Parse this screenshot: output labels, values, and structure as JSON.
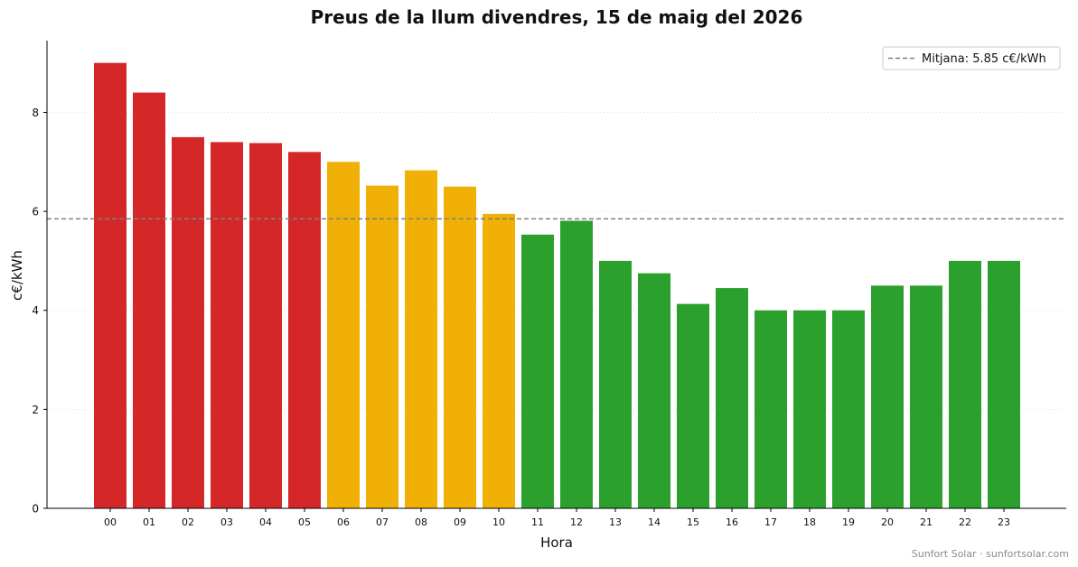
{
  "chart_data": {
    "type": "bar",
    "title": "Preus de la llum divendres, 15 de maig del 2026",
    "xlabel": "Hora",
    "ylabel": "c€/kWh",
    "categories": [
      "00",
      "01",
      "02",
      "03",
      "04",
      "05",
      "06",
      "07",
      "08",
      "09",
      "10",
      "11",
      "12",
      "13",
      "14",
      "15",
      "16",
      "17",
      "18",
      "19",
      "20",
      "21",
      "22",
      "23"
    ],
    "values": [
      9.0,
      8.4,
      7.5,
      7.4,
      7.38,
      7.2,
      7.0,
      6.52,
      6.83,
      6.5,
      5.95,
      5.53,
      5.81,
      5.0,
      4.75,
      4.13,
      4.45,
      4.0,
      4.0,
      4.0,
      4.5,
      4.5,
      5.0,
      5.0
    ],
    "bar_colors": [
      "#d62728",
      "#d62728",
      "#d62728",
      "#d62728",
      "#d62728",
      "#d62728",
      "#f0b005",
      "#f0b005",
      "#f0b005",
      "#f0b005",
      "#f0b005",
      "#2ca02c",
      "#2ca02c",
      "#2ca02c",
      "#2ca02c",
      "#2ca02c",
      "#2ca02c",
      "#2ca02c",
      "#2ca02c",
      "#2ca02c",
      "#2ca02c",
      "#2ca02c",
      "#2ca02c",
      "#2ca02c"
    ],
    "yticks": [
      0,
      2,
      4,
      6,
      8
    ],
    "ylim": [
      0,
      9.45
    ],
    "grid": true,
    "mean_line": {
      "value": 5.85,
      "color": "#808080",
      "style": "dashed",
      "legend_label": "Mitjana: 5.85 c€/kWh"
    },
    "legend_position": "top-right"
  },
  "footer": {
    "credit": "Sunfort Solar · sunfortsolar.com"
  }
}
